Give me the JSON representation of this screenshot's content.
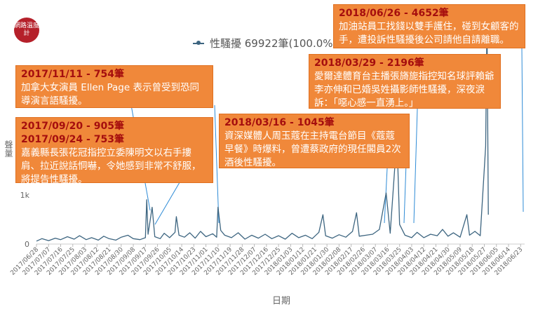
{
  "logo_text": "網路溫度計",
  "colors": {
    "line": "#3d6580",
    "annotation_bg": "#f0883a",
    "annotation_date": "#a50e0e",
    "leader_line": "#2e8bd6"
  },
  "chart_data": {
    "type": "line",
    "title": "",
    "xlabel": "日期",
    "ylabel": "聲量",
    "ylim": [
      0,
      4700
    ],
    "grid": false,
    "legend_position": "top",
    "series": [
      {
        "name": "性騷擾 69922筆(100.0%)"
      }
    ],
    "x_ticks": [
      "2017/06/28",
      "2017/07/07",
      "2017/07/16",
      "2017/07/25",
      "2017/08/03",
      "2017/08/12",
      "2017/08/21",
      "2017/08/30",
      "2017/09/08",
      "2017/09/17",
      "2017/09/26",
      "2017/10/05",
      "2017/10/14",
      "2017/10/23",
      "2017/11/01",
      "2017/11/10",
      "2017/11/19",
      "2017/11/28",
      "2017/12/07",
      "2017/12/16",
      "2017/12/25",
      "2018/01/03",
      "2018/01/12",
      "2018/01/21",
      "2018/01/30",
      "2018/02/08",
      "2018/02/17",
      "2018/02/26",
      "2018/03/07",
      "2018/03/16",
      "2018/03/25",
      "2018/04/03",
      "2018/04/12",
      "2018/04/21",
      "2018/04/30",
      "2018/05/09",
      "2018/05/18",
      "2018/05/27",
      "2018/06/05",
      "2018/06/14",
      "2018/06/23"
    ],
    "y_ticks": [
      {
        "value": 0,
        "label": "0"
      },
      {
        "value": 1000,
        "label": "1k"
      }
    ],
    "start_date": "2017/06/28",
    "points": [
      [
        0,
        60
      ],
      [
        4,
        110
      ],
      [
        9,
        70
      ],
      [
        14,
        120
      ],
      [
        18,
        90
      ],
      [
        23,
        150
      ],
      [
        28,
        100
      ],
      [
        32,
        170
      ],
      [
        37,
        90
      ],
      [
        41,
        130
      ],
      [
        46,
        80
      ],
      [
        50,
        160
      ],
      [
        54,
        110
      ],
      [
        59,
        80
      ],
      [
        63,
        140
      ],
      [
        68,
        180
      ],
      [
        72,
        110
      ],
      [
        77,
        90
      ],
      [
        81,
        130
      ],
      [
        82,
        905
      ],
      [
        83,
        200
      ],
      [
        86,
        753
      ],
      [
        88,
        150
      ],
      [
        92,
        110
      ],
      [
        95,
        220
      ],
      [
        99,
        130
      ],
      [
        103,
        240
      ],
      [
        104,
        560
      ],
      [
        106,
        180
      ],
      [
        110,
        140
      ],
      [
        114,
        230
      ],
      [
        118,
        120
      ],
      [
        122,
        260
      ],
      [
        126,
        150
      ],
      [
        131,
        210
      ],
      [
        134,
        140
      ],
      [
        135,
        754
      ],
      [
        137,
        280
      ],
      [
        140,
        180
      ],
      [
        145,
        130
      ],
      [
        150,
        230
      ],
      [
        155,
        100
      ],
      [
        160,
        180
      ],
      [
        165,
        120
      ],
      [
        170,
        200
      ],
      [
        175,
        110
      ],
      [
        180,
        170
      ],
      [
        185,
        100
      ],
      [
        190,
        220
      ],
      [
        195,
        130
      ],
      [
        200,
        180
      ],
      [
        205,
        110
      ],
      [
        210,
        240
      ],
      [
        213,
        600
      ],
      [
        215,
        170
      ],
      [
        220,
        120
      ],
      [
        225,
        190
      ],
      [
        230,
        140
      ],
      [
        235,
        260
      ],
      [
        238,
        640
      ],
      [
        240,
        160
      ],
      [
        245,
        180
      ],
      [
        250,
        200
      ],
      [
        255,
        300
      ],
      [
        260,
        1045
      ],
      [
        263,
        220
      ],
      [
        268,
        2196
      ],
      [
        270,
        400
      ],
      [
        274,
        180
      ],
      [
        279,
        130
      ],
      [
        283,
        240
      ],
      [
        288,
        130
      ],
      [
        293,
        200
      ],
      [
        298,
        170
      ],
      [
        302,
        300
      ],
      [
        306,
        160
      ],
      [
        310,
        230
      ],
      [
        315,
        140
      ],
      [
        320,
        600
      ],
      [
        322,
        180
      ],
      [
        326,
        260
      ],
      [
        330,
        170
      ],
      [
        334,
        2000
      ],
      [
        335,
        4652
      ],
      [
        336,
        600
      ]
    ]
  },
  "annotations": [
    {
      "dates": [
        "2017/11/11 - 754筆"
      ],
      "text": "加拿大女演員 Ellen Page 表示曾受到恐同導演言語騷擾。"
    },
    {
      "dates": [
        "2017/09/20 -  905筆",
        "2017/09/24 -  753筆"
      ],
      "text": "嘉義縣長張花冠指控立委陳明文以右手摟肩、拉近說話恫嚇，令她感到非常不舒服，將提告性騷擾。"
    },
    {
      "dates": [
        "2018/03/16 - 1045筆"
      ],
      "text": "資深媒體人周玉蔻在主持電台節目《蔻蔻早餐》時爆料，曾遭蔡政府的現任閣員2次酒後性騷擾。"
    },
    {
      "dates": [
        "2018/03/29 - 2196筆"
      ],
      "text": "愛爾達體育台主播張旖旎指控知名球評賴爺李亦伸和已婚吳姓攝影師性騷擾，深夜淚訴：「噁心感一直湧上。」"
    },
    {
      "dates": [
        "2018/06/26 - 4652筆"
      ],
      "text": "加油站員工找錢以雙手護住，碰到女顧客的手，遭投訴性騷擾後公司請他自請離職。"
    }
  ]
}
